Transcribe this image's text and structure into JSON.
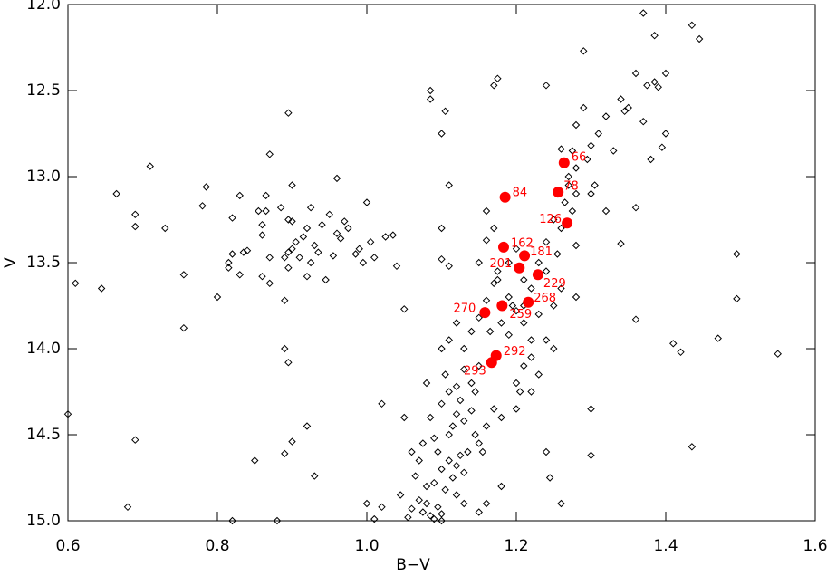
{
  "chart_data": {
    "type": "scatter",
    "xlabel": "B−V",
    "ylabel": "V",
    "xlim": [
      0.6,
      1.6
    ],
    "ylim": [
      15.0,
      12.0
    ],
    "xticks": [
      0.6,
      0.8,
      {
        "value": 1,
        "label": "1.0"
      },
      1.2,
      1.4,
      1.6
    ],
    "yticks": [
      {
        "value": 12,
        "label": "12.0"
      },
      12.5,
      {
        "value": 13,
        "label": "13.0"
      },
      13.5,
      {
        "value": 14,
        "label": "14.0"
      },
      14.5,
      {
        "value": 15,
        "label": "15.0"
      }
    ],
    "series": [
      {
        "color": "#000000",
        "marker": "diamond",
        "x": [
          0.61,
          0.645,
          0.665,
          0.69,
          0.69,
          0.71,
          0.73,
          0.755,
          0.755,
          0.78,
          0.785,
          0.8,
          0.815,
          0.815,
          0.82,
          0.82,
          0.83,
          0.83,
          0.835,
          0.84,
          0.855,
          0.86,
          0.86,
          0.86,
          0.865,
          0.865,
          0.87,
          0.87,
          0.87,
          0.885,
          0.89,
          0.89,
          0.895,
          0.895,
          0.895,
          0.895,
          0.9,
          0.9,
          0.9,
          0.905,
          0.91,
          0.915,
          0.92,
          0.92,
          0.925,
          0.925,
          0.93,
          0.935,
          0.94,
          0.945,
          0.95,
          0.955,
          0.96,
          0.96,
          0.965,
          0.97,
          0.975,
          0.985,
          0.99,
          0.995,
          1.0,
          1.005,
          1.01,
          1.025,
          1.035,
          1.04,
          1.05,
          0.89,
          0.895,
          0.9,
          0.92,
          0.93,
          0.89,
          0.85,
          0.82,
          0.69,
          0.68,
          0.6,
          0.88,
          1.0,
          1.02,
          1.02,
          1.01,
          1.055,
          1.06,
          1.07,
          1.075,
          1.08,
          1.085,
          1.09,
          1.095,
          1.1,
          1.065,
          1.07,
          1.075,
          1.08,
          1.09,
          1.095,
          1.1,
          1.105,
          1.11,
          1.115,
          1.12,
          1.125,
          1.13,
          1.135,
          1.12,
          1.13,
          1.11,
          1.115,
          1.12,
          1.125,
          1.13,
          1.14,
          1.145,
          1.15,
          1.155,
          1.16,
          1.1,
          1.105,
          1.11,
          1.12,
          1.13,
          1.14,
          1.145,
          1.15,
          1.08,
          1.085,
          1.09,
          1.1,
          1.11,
          1.12,
          1.13,
          1.14,
          1.15,
          1.16,
          1.165,
          1.17,
          1.18,
          1.19,
          1.2,
          1.2,
          1.205,
          1.21,
          1.22,
          1.2,
          1.18,
          1.17,
          1.19,
          1.175,
          1.19,
          1.2,
          1.21,
          1.22,
          1.23,
          1.24,
          1.25,
          1.24,
          1.255,
          1.26,
          1.265,
          1.27,
          1.275,
          1.28,
          1.275,
          1.28,
          1.26,
          1.25,
          1.23,
          1.21,
          1.22,
          1.255,
          1.26,
          1.27,
          1.28,
          1.295,
          1.3,
          1.305,
          1.31,
          1.32,
          1.33,
          1.34,
          1.345,
          1.35,
          1.36,
          1.37,
          1.375,
          1.385,
          1.39,
          1.395,
          1.4,
          1.4,
          1.38,
          1.37,
          1.385,
          1.435,
          1.445,
          1.29,
          1.29,
          1.28,
          1.24,
          1.175,
          1.17,
          1.085,
          1.085,
          1.105,
          1.1,
          1.11,
          1.1,
          1.1,
          1.11,
          1.16,
          1.16,
          1.175,
          1.15,
          1.17,
          1.195,
          1.21,
          1.24,
          1.25,
          1.24,
          1.245,
          1.3,
          1.3,
          1.26,
          1.36,
          1.36,
          1.34,
          1.41,
          1.42,
          1.435,
          1.47,
          1.495,
          1.495,
          1.55,
          1.28,
          1.3,
          1.32,
          1.18,
          1.16,
          1.05,
          1.06,
          1.045,
          1.1,
          1.15,
          1.23,
          1.22
        ],
        "values": [
          13.62,
          13.65,
          13.1,
          13.22,
          13.29,
          12.94,
          13.3,
          13.57,
          13.88,
          13.17,
          13.06,
          13.7,
          13.5,
          13.53,
          13.24,
          13.45,
          13.11,
          13.57,
          13.44,
          13.43,
          13.2,
          13.28,
          13.34,
          13.58,
          13.11,
          13.2,
          12.87,
          13.47,
          13.62,
          13.18,
          13.47,
          13.72,
          13.25,
          13.44,
          13.53,
          12.63,
          13.05,
          13.26,
          13.42,
          13.38,
          13.47,
          13.35,
          13.58,
          13.3,
          13.18,
          13.5,
          13.4,
          13.44,
          13.28,
          13.6,
          13.22,
          13.46,
          13.01,
          13.33,
          13.36,
          13.26,
          13.3,
          13.45,
          13.42,
          13.5,
          13.15,
          13.38,
          13.47,
          13.35,
          13.34,
          13.52,
          13.77,
          14.0,
          14.08,
          14.54,
          14.45,
          14.74,
          14.61,
          14.65,
          15.0,
          14.53,
          14.92,
          14.38,
          15.0,
          14.9,
          14.92,
          14.32,
          14.99,
          14.98,
          14.93,
          14.88,
          14.95,
          14.9,
          14.97,
          14.99,
          14.92,
          14.96,
          14.74,
          14.65,
          14.55,
          14.8,
          14.78,
          14.6,
          14.7,
          14.82,
          14.65,
          14.75,
          14.68,
          14.62,
          14.72,
          14.6,
          14.85,
          14.9,
          14.5,
          14.45,
          14.38,
          14.3,
          14.42,
          14.36,
          14.5,
          14.55,
          14.6,
          14.45,
          14.32,
          14.15,
          14.25,
          14.22,
          14.12,
          14.2,
          14.25,
          14.1,
          14.2,
          14.4,
          14.52,
          14.0,
          13.95,
          13.85,
          14.0,
          13.9,
          13.82,
          13.72,
          13.9,
          13.62,
          13.85,
          13.92,
          13.78,
          14.2,
          14.25,
          14.1,
          14.05,
          14.35,
          14.4,
          14.35,
          13.7,
          13.55,
          13.5,
          13.42,
          13.6,
          13.65,
          13.5,
          13.38,
          13.25,
          13.55,
          13.45,
          13.3,
          13.15,
          13.05,
          13.2,
          12.95,
          12.85,
          13.4,
          13.65,
          13.75,
          13.8,
          13.85,
          13.95,
          13.1,
          12.84,
          13.0,
          13.1,
          12.9,
          12.82,
          13.05,
          12.75,
          12.65,
          12.85,
          12.55,
          12.62,
          12.6,
          12.4,
          12.68,
          12.47,
          12.45,
          12.48,
          12.83,
          12.4,
          12.75,
          12.9,
          12.05,
          12.18,
          12.12,
          12.2,
          12.27,
          12.6,
          12.7,
          12.47,
          12.43,
          12.47,
          12.55,
          12.5,
          12.62,
          12.75,
          13.05,
          13.3,
          13.48,
          13.52,
          13.2,
          13.37,
          13.6,
          13.5,
          13.3,
          13.75,
          13.75,
          13.95,
          14.0,
          14.6,
          14.75,
          14.35,
          14.62,
          14.9,
          13.18,
          13.83,
          13.39,
          13.97,
          14.02,
          14.57,
          13.94,
          13.45,
          13.71,
          14.03,
          13.7,
          13.1,
          13.2,
          14.8,
          14.9,
          14.4,
          14.6,
          14.85,
          15.0,
          14.95,
          14.15,
          14.25
        ]
      },
      {
        "color": "#ff0000",
        "marker": "circle",
        "x": [
          1.264,
          1.185,
          1.256,
          1.268,
          1.183,
          1.211,
          1.204,
          1.229,
          1.216,
          1.181,
          1.158,
          1.173,
          1.167
        ],
        "values": [
          12.92,
          13.12,
          13.09,
          13.27,
          13.41,
          13.46,
          13.53,
          13.57,
          13.73,
          13.75,
          13.79,
          14.04,
          14.08
        ],
        "point_labels": [
          "66",
          "84",
          "78",
          "126",
          "162",
          "181",
          "201",
          "229",
          "268",
          "259",
          "270",
          "292",
          "293"
        ]
      }
    ]
  }
}
